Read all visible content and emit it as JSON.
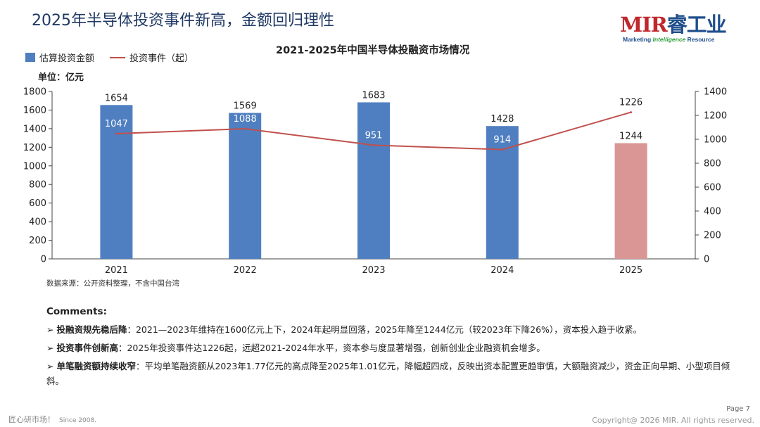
{
  "slide": {
    "title": "2025年半导体投资事件新高，金额回归理性",
    "page_label": "Page 7",
    "copyright": "Copyright@ 2026 MIR. All rights reserved.",
    "footer_brand": "匠心研市场！",
    "footer_since": "Since 2008."
  },
  "logo": {
    "main": "MIR",
    "cn": "睿工业",
    "sub_prefix": "Marketing ",
    "sub_italic": "Intelligence",
    "sub_suffix": " Resource"
  },
  "chart_data": {
    "type": "bar",
    "title": "2021-2025年中国半导体投融资市场情况",
    "unit_label": "单位：亿元",
    "categories": [
      "2021",
      "2022",
      "2023",
      "2024",
      "2025"
    ],
    "series": [
      {
        "name": "估算投资金额",
        "type": "bar",
        "axis": "left",
        "values": [
          1654,
          1569,
          1683,
          1428,
          1244
        ],
        "colors": [
          "#4f7fc0",
          "#4f7fc0",
          "#4f7fc0",
          "#4f7fc0",
          "#d99694"
        ]
      },
      {
        "name": "投资事件（起）",
        "type": "line",
        "axis": "right",
        "values": [
          1047,
          1088,
          951,
          914,
          1226
        ],
        "color": "#c0504d"
      }
    ],
    "left_axis": {
      "min": 0,
      "max": 1800,
      "step": 200
    },
    "right_axis": {
      "min": 0,
      "max": 1400,
      "step": 200
    },
    "grid": false,
    "legend": "top-left"
  },
  "source": "数据来源：公开资料整理，不含中国台湾",
  "comments": {
    "title": "Comments:",
    "bullets": [
      {
        "head": "投融资规先稳后降",
        "text": "：2021—2023年维持在1600亿元上下，2024年起明显回落，2025年降至1244亿元（较2023年下降26%），资本投入趋于收紧。"
      },
      {
        "head": "投资事件创新高",
        "text": "：2025年投资事件达1226起，远超2021-2024年水平，资本参与度显著增强，创新创业企业融资机会增多。"
      },
      {
        "head": "单笔融资额持续收窄",
        "text": "：平均单笔融资额从2023年1.77亿元的高点降至2025年1.01亿元，降幅超四成，反映出资本配置更趋审慎，大额融资减少，资金正向早期、小型项目倾斜。"
      }
    ]
  }
}
